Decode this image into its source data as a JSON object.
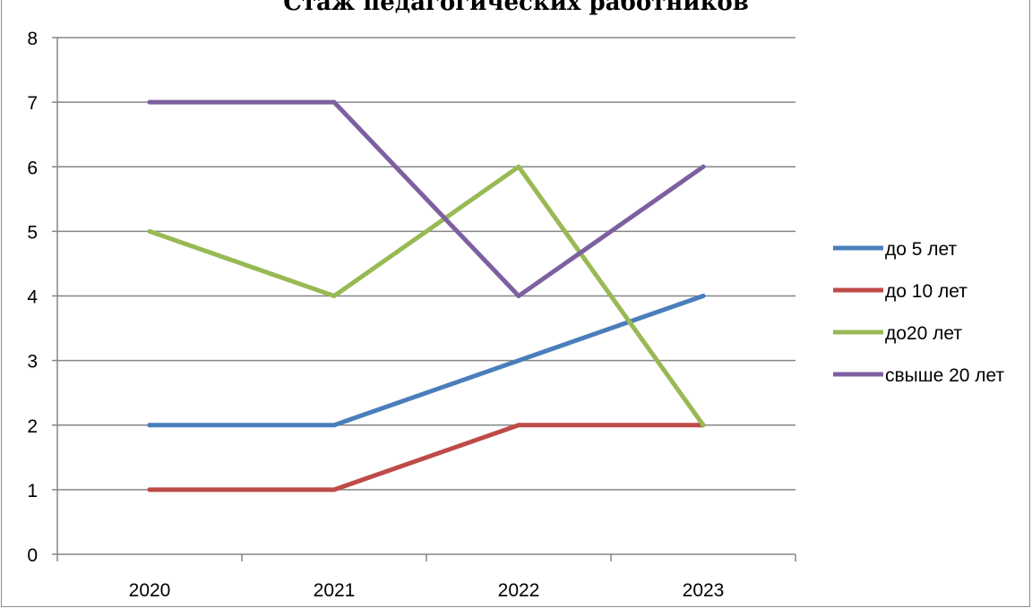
{
  "chart_data": {
    "type": "line",
    "title": "Стаж педагогических работников",
    "categories": [
      "2020",
      "2021",
      "2022",
      "2023"
    ],
    "ylim": [
      0,
      8
    ],
    "yticks": [
      "0",
      "1",
      "2",
      "3",
      "4",
      "5",
      "6",
      "7",
      "8"
    ],
    "grid": true,
    "legend_position": "right",
    "series": [
      {
        "name": "до 5 лет",
        "color": "#4a7ebb",
        "values": [
          2,
          2,
          3,
          4
        ]
      },
      {
        "name": "до 10 лет",
        "color": "#be4b48",
        "values": [
          1,
          1,
          2,
          2
        ]
      },
      {
        "name": "до20 лет",
        "color": "#98b954",
        "values": [
          5,
          4,
          6,
          2
        ]
      },
      {
        "name": "свыше 20 лет",
        "color": "#7d60a0",
        "values": [
          7,
          7,
          4,
          6
        ]
      }
    ]
  }
}
